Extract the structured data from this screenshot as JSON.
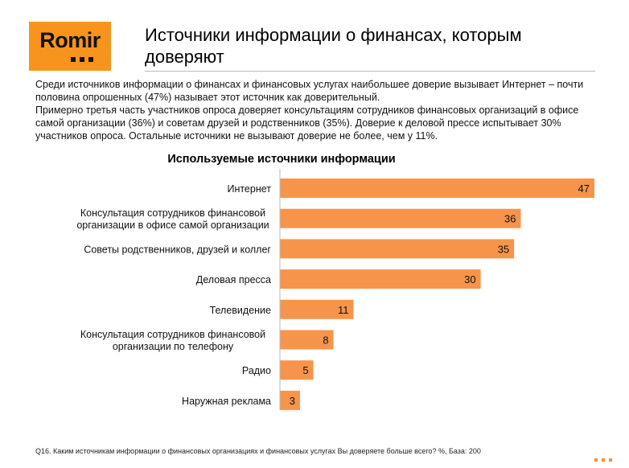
{
  "logo": {
    "text": "Romir"
  },
  "header": {
    "title": "Источники информации о финансах, которым доверяют"
  },
  "intro": {
    "p1": "Среди источников информации о финансах и финансовых услугах наибольшее доверие вызывает Интернет – почти половина опрошенных (47%) называет этот источник как доверительный.",
    "p2": "Примерно третья часть участников опроса доверяет консультациям сотрудников финансовых организаций в офисе самой организации (36%) и советам друзей и родственников (35%). Доверие к деловой прессе испытывает 30% участников опроса. Остальные источники не вызывают доверие не более, чем у  11%."
  },
  "colors": {
    "accent": "#f7941d",
    "bar": "#f7944b"
  },
  "chart_data": {
    "type": "bar",
    "orientation": "horizontal",
    "title": "Используемые источники информации",
    "categories": [
      "Интернет",
      "Консультация сотрудников финансовой организации в офисе самой организации",
      "Советы родственников, друзей и коллег",
      "Деловая пресса",
      "Телевидение",
      "Консультация сотрудников финансовой организации по телефону",
      "Радио",
      "Наружная реклама"
    ],
    "category_lines": [
      [
        "Интернет"
      ],
      [
        "Консультация сотрудников финансовой",
        "организации в офисе самой организации"
      ],
      [
        "Советы родственников, друзей и коллег"
      ],
      [
        "Деловая пресса"
      ],
      [
        "Телевидение"
      ],
      [
        "Консультация сотрудников финансовой",
        "организации по телефону"
      ],
      [
        "Радио"
      ],
      [
        "Наружная реклама"
      ]
    ],
    "values": [
      47,
      36,
      35,
      30,
      11,
      8,
      5,
      3
    ],
    "xlim": [
      0,
      47
    ],
    "grid": false,
    "legend": "none"
  },
  "footnote": "Q16. Каким источникам информации о финансовых организациях и финансовых услугах Вы доверяете больше всего? %, База: 200"
}
